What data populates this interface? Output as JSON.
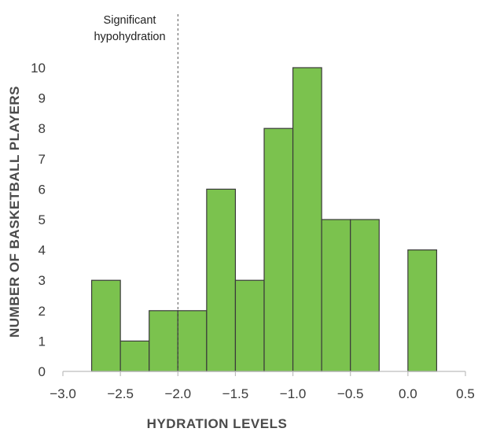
{
  "chart_data": {
    "type": "bar",
    "title": "",
    "xlabel": "HYDRATION LEVELS",
    "ylabel": "NUMBER OF BASKETBALL PLAYERS",
    "bin_width": 0.25,
    "bins": [
      {
        "start": -2.75,
        "end": -2.5,
        "value": 3
      },
      {
        "start": -2.5,
        "end": -2.25,
        "value": 1
      },
      {
        "start": -2.25,
        "end": -2.0,
        "value": 2
      },
      {
        "start": -2.0,
        "end": -1.75,
        "value": 2
      },
      {
        "start": -1.75,
        "end": -1.5,
        "value": 6
      },
      {
        "start": -1.5,
        "end": -1.25,
        "value": 3
      },
      {
        "start": -1.25,
        "end": -1.0,
        "value": 8
      },
      {
        "start": -1.0,
        "end": -0.75,
        "value": 10
      },
      {
        "start": -0.75,
        "end": -0.5,
        "value": 5
      },
      {
        "start": -0.5,
        "end": -0.25,
        "value": 5
      },
      {
        "start": -0.25,
        "end": 0.0,
        "value": 0
      },
      {
        "start": 0.0,
        "end": 0.25,
        "value": 4
      }
    ],
    "xlim": [
      -3.0,
      0.5
    ],
    "ylim": [
      0,
      10
    ],
    "x_ticks": [
      -3.0,
      -2.5,
      -2.0,
      -1.5,
      -1.0,
      -0.5,
      0.0,
      0.5
    ],
    "x_tick_labels": [
      "−3.0",
      "−2.5",
      "−2.0",
      "−1.5",
      "−1.0",
      "−0.5",
      "0.0",
      "0.5"
    ],
    "y_ticks": [
      0,
      1,
      2,
      3,
      4,
      5,
      6,
      7,
      8,
      9,
      10
    ],
    "y_tick_labels": [
      "0",
      "1",
      "2",
      "3",
      "4",
      "5",
      "6",
      "7",
      "8",
      "9",
      "10"
    ],
    "grid": false,
    "bar_color": "#7bc24e",
    "bar_edge_color": "#3a3a3a",
    "reference_line": {
      "x": -2.0,
      "style": "dashed",
      "label_lines": [
        "Significant",
        "hypohydration"
      ]
    }
  }
}
